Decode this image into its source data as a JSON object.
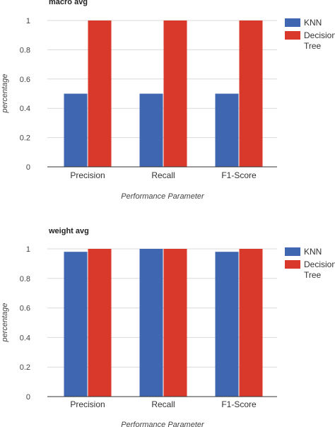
{
  "colors": {
    "knn": "#3f66b0",
    "decision_tree": "#d9392a",
    "grid": "#d9d9d9"
  },
  "chart_data": [
    {
      "type": "bar",
      "title": "macro avg",
      "xlabel": "Performance Parameter",
      "ylabel": "percentage",
      "ylim": [
        0,
        1
      ],
      "yticks": [
        "0",
        "0.2",
        "0.4",
        "0.6",
        "0.8",
        "1"
      ],
      "categories": [
        "Precision",
        "Recall",
        "F1-Score"
      ],
      "series": [
        {
          "name": "KNN",
          "values": [
            0.5,
            0.5,
            0.5
          ]
        },
        {
          "name": "Decision Tree",
          "values": [
            1,
            1,
            1
          ]
        }
      ],
      "legend": {
        "position": "right",
        "items": [
          [
            "KNN"
          ],
          [
            "Decisions",
            "Tree"
          ]
        ]
      },
      "grid": true
    },
    {
      "type": "bar",
      "title": "weight avg",
      "xlabel": "Performance Parameter",
      "ylabel": "percentage",
      "ylim": [
        0,
        1
      ],
      "yticks": [
        "0",
        "0.2",
        "0.4",
        "0.6",
        "0.8",
        "1"
      ],
      "categories": [
        "Precision",
        "Recall",
        "F1-Score"
      ],
      "series": [
        {
          "name": "KNN",
          "values": [
            0.98,
            1,
            0.98
          ]
        },
        {
          "name": "Decision Tree",
          "values": [
            1,
            1,
            1
          ]
        }
      ],
      "legend": {
        "position": "right",
        "items": [
          [
            "KNN"
          ],
          [
            "Decisions",
            "Tree"
          ]
        ]
      },
      "grid": true
    }
  ]
}
